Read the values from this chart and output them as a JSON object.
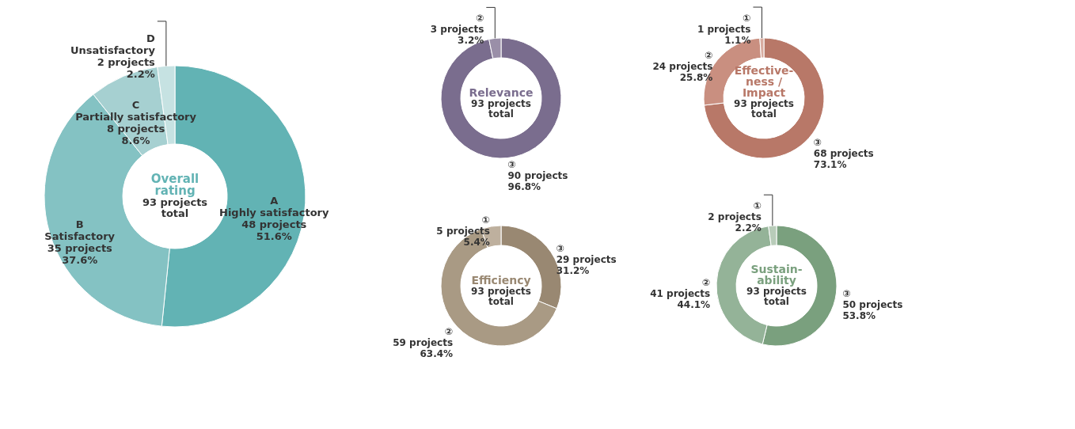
{
  "chart_data": [
    {
      "type": "donut",
      "title": "Overall\nrating",
      "subtitle": "93 projects\ntotal",
      "categories": [
        "A\nHighly satisfactory",
        "B\nSatisfactory",
        "C\nPartially satisfactory",
        "D\nUnsatisfactory"
      ],
      "values": [
        48,
        35,
        8,
        2
      ],
      "colors": [
        "#62b3b4",
        "#84c2c3",
        "#a6d0d1",
        "#c6e2e2"
      ],
      "value_labels": [
        "48 projects\n51.6%",
        "35 projects\n37.6%",
        "8 projects\n8.6%",
        "2 projects\n2.2%"
      ]
    },
    {
      "type": "donut",
      "title": "Relevance",
      "subtitle": "93 projects\ntotal",
      "categories": [
        "③",
        "②"
      ],
      "values": [
        90,
        3
      ],
      "colors": [
        "#7a6d8e",
        "#9a8fa8"
      ],
      "value_labels": [
        "90 projects\n96.8%",
        "3 projects\n3.2%"
      ]
    },
    {
      "type": "donut",
      "title": "Effective-\nness /\nImpact",
      "subtitle": "93 projects\ntotal",
      "categories": [
        "③",
        "②",
        "①"
      ],
      "values": [
        68,
        24,
        1
      ],
      "colors": [
        "#b87868",
        "#c98f80",
        "#d8aca0"
      ],
      "value_labels": [
        "68 projects\n73.1%",
        "24 projects\n25.8%",
        "1 projects\n1.1%"
      ]
    },
    {
      "type": "donut",
      "title": "Efficiency",
      "subtitle": "93 projects\ntotal",
      "categories": [
        "③",
        "②",
        "①"
      ],
      "values": [
        29,
        59,
        5
      ],
      "colors": [
        "#998872",
        "#a99a84",
        "#beb09e"
      ],
      "value_labels": [
        "29 projects\n31.2%",
        "59 projects\n63.4%",
        "5 projects\n5.4%"
      ]
    },
    {
      "type": "donut",
      "title": "Sustain-\nability",
      "subtitle": "93 projects\ntotal",
      "categories": [
        "③",
        "②",
        "①"
      ],
      "values": [
        50,
        41,
        2
      ],
      "colors": [
        "#7aa07e",
        "#94b398",
        "#b8ccb9"
      ],
      "value_labels": [
        "50 projects\n53.8%",
        "41 projects\n44.1%",
        "2 projects\n2.2%"
      ]
    }
  ]
}
